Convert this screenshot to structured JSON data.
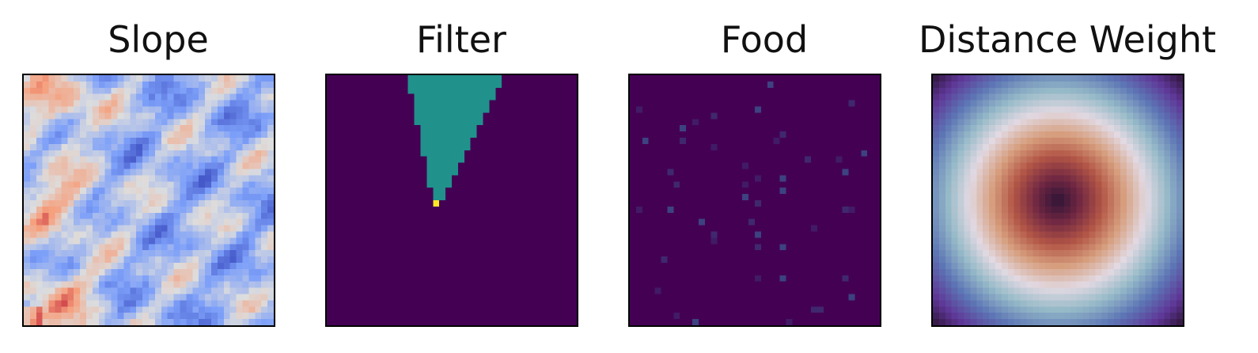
{
  "chart_data": [
    {
      "type": "heatmap",
      "title": "Slope",
      "grid_size": 40,
      "colormap": "coolwarm",
      "axes_ticks": false,
      "description_values": "rough terrain slope field, mostly low (blue) values with higher (orange) patches on the left side"
    },
    {
      "type": "heatmap",
      "title": "Filter",
      "grid_size": 40,
      "colormap": "viridis",
      "axes_ticks": false,
      "levels": {
        "background": 0,
        "cone": 0.5,
        "agent": 1
      },
      "cone": {
        "apex_row": 20,
        "apex_col": 17,
        "top_row": 0,
        "top_col_start": 13,
        "top_col_end": 28
      },
      "agent_cell": {
        "row": 20,
        "col": 17
      }
    },
    {
      "type": "heatmap",
      "title": "Food",
      "grid_size": 40,
      "colormap": "viridis",
      "axes_ticks": false,
      "food_cells": [
        [
          1,
          22
        ],
        [
          4,
          35
        ],
        [
          5,
          1
        ],
        [
          5,
          20
        ],
        [
          6,
          13
        ],
        [
          7,
          10
        ],
        [
          8,
          8
        ],
        [
          9,
          24
        ],
        [
          10,
          23
        ],
        [
          10,
          2
        ],
        [
          10,
          8
        ],
        [
          11,
          13
        ],
        [
          12,
          37
        ],
        [
          13,
          28
        ],
        [
          13,
          33
        ],
        [
          15,
          34
        ],
        [
          15,
          6
        ],
        [
          16,
          20
        ],
        [
          16,
          24
        ],
        [
          17,
          7
        ],
        [
          17,
          18
        ],
        [
          18,
          24
        ],
        [
          20,
          20
        ],
        [
          21,
          1
        ],
        [
          21,
          6
        ],
        [
          21,
          34
        ],
        [
          21,
          35
        ],
        [
          23,
          11
        ],
        [
          23,
          19
        ],
        [
          24,
          29
        ],
        [
          25,
          20
        ],
        [
          25,
          13
        ],
        [
          26,
          13
        ],
        [
          27,
          24
        ],
        [
          29,
          5
        ],
        [
          32,
          20
        ],
        [
          32,
          24
        ],
        [
          32,
          34
        ],
        [
          34,
          4
        ],
        [
          35,
          35
        ],
        [
          37,
          29
        ],
        [
          38,
          7
        ],
        [
          39,
          10
        ],
        [
          37,
          30
        ],
        [
          39,
          25
        ],
        [
          19,
          18
        ],
        [
          27,
          20
        ],
        [
          14,
          18
        ]
      ]
    },
    {
      "type": "heatmap",
      "title": "Distance Weight",
      "grid_size": 40,
      "colormap": "twilight",
      "axes_ticks": false,
      "center": [
        20,
        20
      ]
    }
  ],
  "colors": {
    "viridis_low": "#440154",
    "viridis_mid": "#21918c",
    "viridis_high": "#fde725",
    "border": "#000000"
  }
}
